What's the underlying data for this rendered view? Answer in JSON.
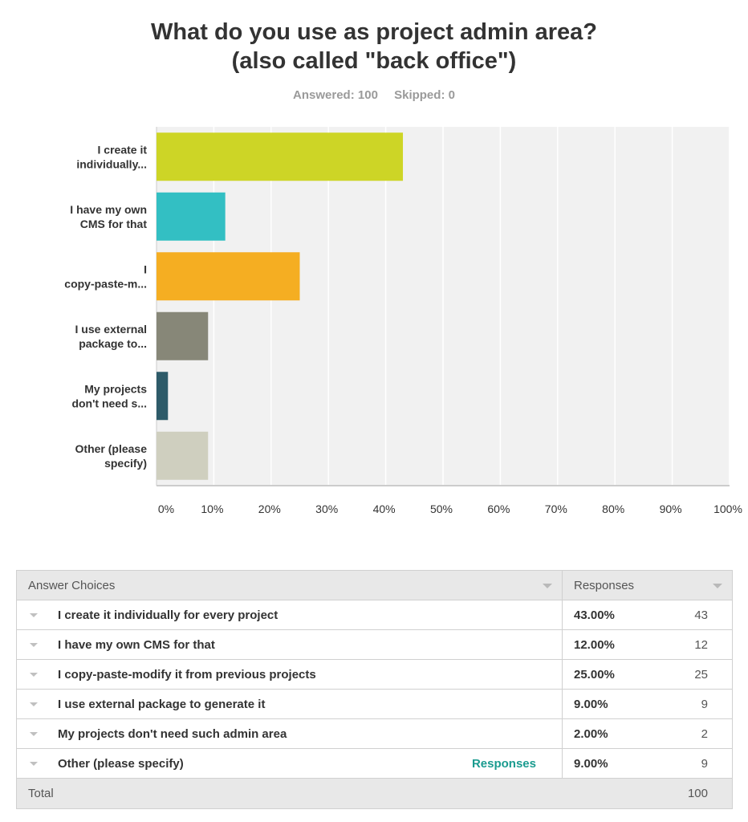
{
  "title": {
    "line1": "What do you use as project admin area?",
    "line2": "(also called \"back office\")"
  },
  "meta": {
    "answered": "Answered: 100",
    "skipped": "Skipped: 0"
  },
  "chart_data": {
    "type": "bar",
    "orientation": "horizontal",
    "categories": [
      [
        "I create it",
        "individually..."
      ],
      [
        "I have my own",
        "CMS for that"
      ],
      [
        "I",
        "copy-paste-m..."
      ],
      [
        "I use external",
        "package to..."
      ],
      [
        "My projects",
        "don't need s..."
      ],
      [
        "Other (please",
        "specify)"
      ]
    ],
    "values": [
      43,
      12,
      25,
      9,
      2,
      9
    ],
    "colors": [
      "#cdd526",
      "#33bfc3",
      "#f5ae22",
      "#878778",
      "#2e5b69",
      "#cfcfbf"
    ],
    "xlim": [
      0,
      100
    ],
    "xticks": [
      "0%",
      "10%",
      "20%",
      "30%",
      "40%",
      "50%",
      "60%",
      "70%",
      "80%",
      "90%",
      "100%"
    ],
    "xlabel": "",
    "ylabel": "",
    "grid": true
  },
  "table": {
    "header_choices": "Answer Choices",
    "header_responses": "Responses",
    "rows": [
      {
        "label": "I create it individually for every project",
        "pct": "43.00%",
        "count": "43"
      },
      {
        "label": "I have my own CMS for that",
        "pct": "12.00%",
        "count": "12"
      },
      {
        "label": "I copy-paste-modify it from previous projects",
        "pct": "25.00%",
        "count": "25"
      },
      {
        "label": "I use external package to generate it",
        "pct": "9.00%",
        "count": "9"
      },
      {
        "label": "My projects don't need such admin area",
        "pct": "2.00%",
        "count": "2"
      },
      {
        "label": "Other (please specify)",
        "pct": "9.00%",
        "count": "9",
        "link": "Responses"
      }
    ],
    "total_label": "Total",
    "total_count": "100"
  }
}
